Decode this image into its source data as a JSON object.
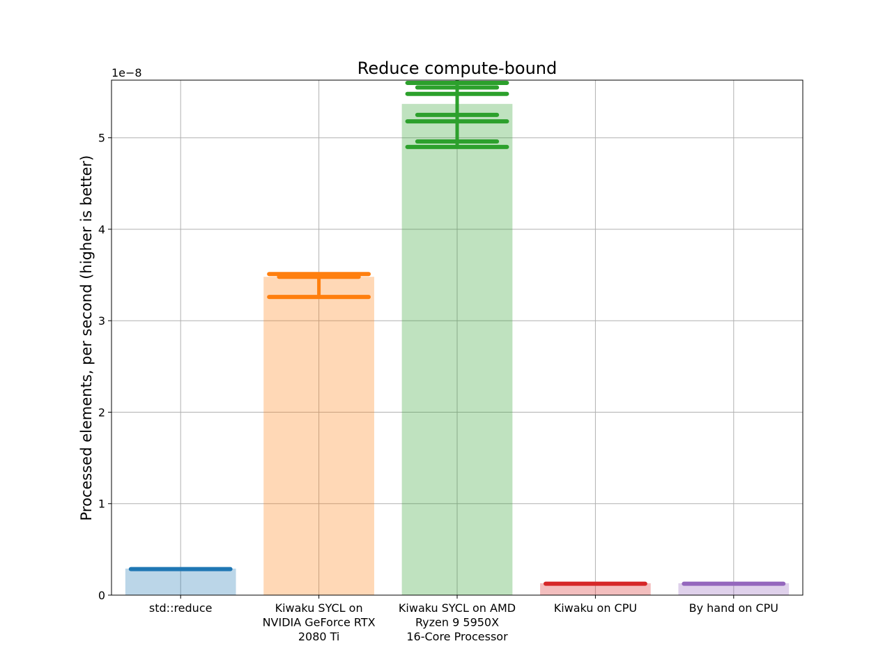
{
  "chart_data": {
    "type": "bar",
    "title": "Reduce compute-bound",
    "ylabel": "Processed elements, per second (higher is better)",
    "xlabel": "",
    "y_offset_label": "1e−8",
    "ylim": [
      0,
      5.63
    ],
    "yticks": [
      0,
      1,
      2,
      3,
      4,
      5
    ],
    "ytick_labels": [
      "0",
      "1",
      "2",
      "3",
      "4",
      "5"
    ],
    "grid": true,
    "categories": [
      [
        "std::reduce"
      ],
      [
        "Kiwaku SYCL on",
        "NVIDIA GeForce RTX",
        "2080 Ti"
      ],
      [
        "Kiwaku SYCL on AMD",
        "Ryzen 9 5950X",
        "16-Core Processor"
      ],
      [
        "Kiwaku on CPU"
      ],
      [
        "By hand on CPU"
      ]
    ],
    "colors": [
      "#1f77b4",
      "#ff7f0e",
      "#2ca02c",
      "#d62728",
      "#9467bd"
    ],
    "values": [
      0.29,
      3.48,
      5.37,
      0.13,
      0.13
    ],
    "distributions": [
      {
        "min": 0.28,
        "max": 0.29,
        "samples": [
          0.285
        ]
      },
      {
        "min": 3.26,
        "max": 3.52,
        "samples": [
          3.51,
          3.48,
          3.26
        ]
      },
      {
        "min": 4.9,
        "max": 5.63,
        "samples": [
          5.6,
          5.55,
          5.48,
          5.25,
          5.18,
          4.96,
          4.9
        ]
      },
      {
        "min": 0.12,
        "max": 0.13,
        "samples": [
          0.125
        ]
      },
      {
        "min": 0.12,
        "max": 0.13,
        "samples": [
          0.125
        ]
      }
    ]
  }
}
